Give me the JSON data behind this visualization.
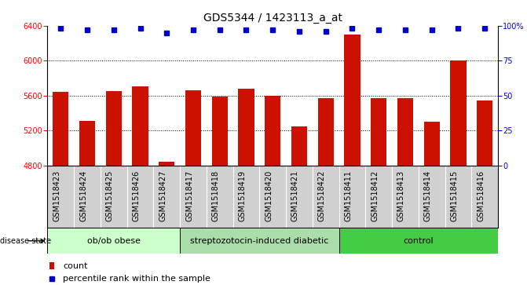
{
  "title": "GDS5344 / 1423113_a_at",
  "samples": [
    "GSM1518423",
    "GSM1518424",
    "GSM1518425",
    "GSM1518426",
    "GSM1518427",
    "GSM1518417",
    "GSM1518418",
    "GSM1518419",
    "GSM1518420",
    "GSM1518421",
    "GSM1518422",
    "GSM1518411",
    "GSM1518412",
    "GSM1518413",
    "GSM1518414",
    "GSM1518415",
    "GSM1518416"
  ],
  "counts": [
    5640,
    5310,
    5650,
    5700,
    4840,
    5660,
    5590,
    5680,
    5600,
    5250,
    5570,
    6300,
    5570,
    5570,
    5300,
    6000,
    5540
  ],
  "percentile_ranks": [
    98,
    97,
    97,
    98,
    95,
    97,
    97,
    97,
    97,
    96,
    96,
    98,
    97,
    97,
    97,
    98,
    98
  ],
  "groups": [
    {
      "label": "ob/ob obese",
      "start": 0,
      "end": 5,
      "color": "#ccffcc"
    },
    {
      "label": "streptozotocin-induced diabetic",
      "start": 5,
      "end": 11,
      "color": "#aaddaa"
    },
    {
      "label": "control",
      "start": 11,
      "end": 17,
      "color": "#44cc44"
    }
  ],
  "bar_color": "#cc1100",
  "dot_color": "#0000cc",
  "ylim_left": [
    4800,
    6400
  ],
  "yticks_left": [
    4800,
    5200,
    5600,
    6000,
    6400
  ],
  "ylim_right": [
    0,
    100
  ],
  "yticks_right": [
    0,
    25,
    50,
    75,
    100
  ],
  "grid_values": [
    5200,
    5600,
    6000
  ],
  "xtick_bg_color": "#d0d0d0",
  "title_fontsize": 10,
  "tick_fontsize": 7,
  "label_fontsize": 8,
  "group_fontsize": 8
}
